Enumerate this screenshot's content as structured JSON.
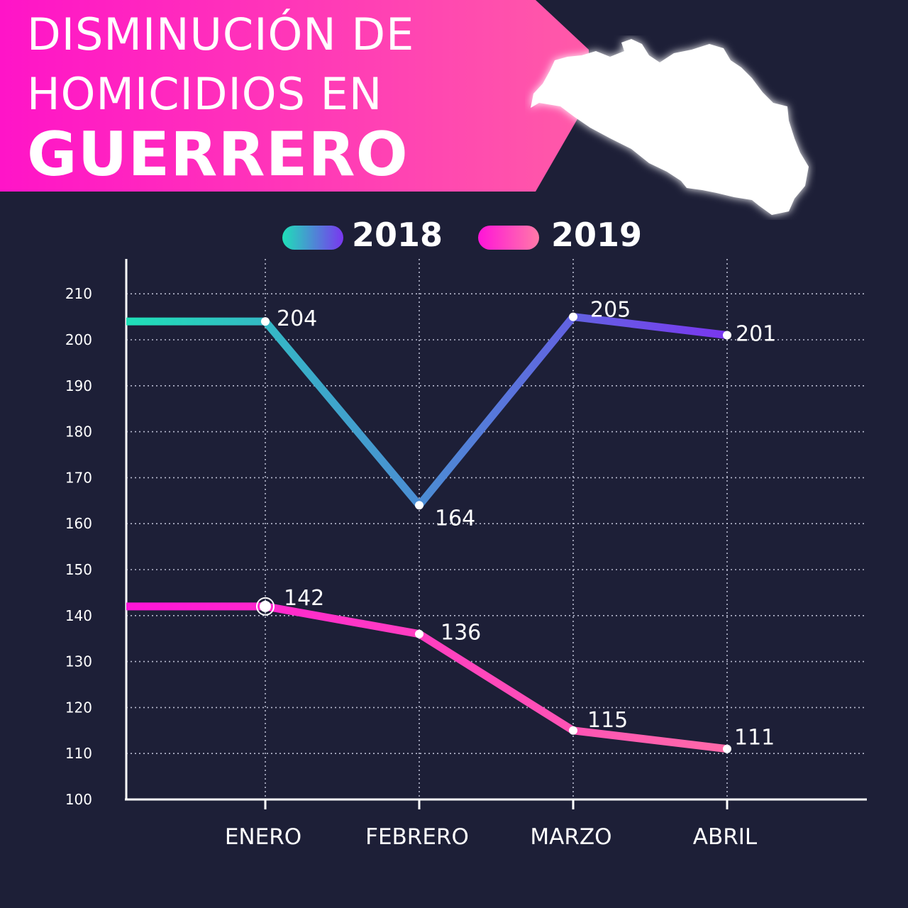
{
  "title": {
    "line1": "DISMINUCIÓN DE",
    "line2": "HOMICIDIOS EN",
    "line3": "GUERRERO"
  },
  "map_icon": "guerrero-state-map-silhouette",
  "colors": {
    "background": "#1d1f37",
    "banner_start": "#ff14c8",
    "banner_end": "#ff5aa8",
    "series_2018_start": "#1fe0b8",
    "series_2018_end": "#7a36f0",
    "series_2019_start": "#ff14d8",
    "series_2019_end": "#ff6aa8",
    "grid": "#c9cbe0",
    "text": "#ffffff"
  },
  "legend": {
    "items": [
      {
        "label": "2018"
      },
      {
        "label": "2019"
      }
    ]
  },
  "chart_data": {
    "type": "line",
    "categories": [
      "ENERO",
      "FEBRERO",
      "MARZO",
      "ABRIL"
    ],
    "series": [
      {
        "name": "2018",
        "values": [
          204,
          164,
          205,
          201
        ]
      },
      {
        "name": "2019",
        "values": [
          142,
          136,
          115,
          111
        ]
      }
    ],
    "y_ticks": [
      100,
      110,
      120,
      130,
      140,
      150,
      160,
      170,
      180,
      190,
      200,
      210
    ],
    "ylim": [
      100,
      212
    ],
    "grid": true,
    "legend_position": "top-center"
  }
}
